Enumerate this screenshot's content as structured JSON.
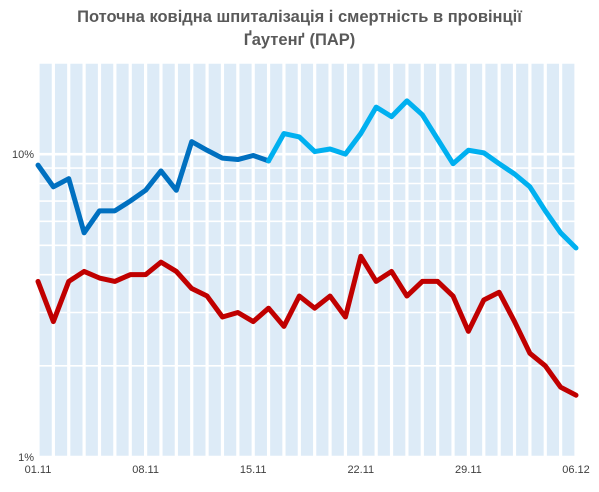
{
  "chart_data": {
    "type": "line",
    "title_lines": [
      "Поточна ковідна шпиталізація і смертність  в провінції",
      "Ґаутенґ (ПАР)"
    ],
    "xlabel": "",
    "ylabel": "",
    "y_scale": "log",
    "ylim": [
      1,
      20
    ],
    "y_ticks": [
      {
        "value": 1,
        "label": "1%"
      },
      {
        "value": 10,
        "label": "10%"
      }
    ],
    "x": [
      "01.11",
      "02.11",
      "03.11",
      "04.11",
      "05.11",
      "06.11",
      "07.11",
      "08.11",
      "09.11",
      "10.11",
      "11.11",
      "12.11",
      "13.11",
      "14.11",
      "15.11",
      "16.11",
      "17.11",
      "18.11",
      "19.11",
      "20.11",
      "21.11",
      "22.11",
      "23.11",
      "24.11",
      "25.11",
      "26.11",
      "27.11",
      "28.11",
      "29.11",
      "30.11",
      "01.12",
      "02.12",
      "03.12",
      "04.12",
      "05.12",
      "06.12"
    ],
    "x_tick_labels": [
      "01.11",
      "08.11",
      "15.11",
      "22.11",
      "29.11",
      "06.12"
    ],
    "grid": {
      "vertical": true,
      "horizontal": true
    },
    "background_color": "#ddebf7",
    "series": [
      {
        "values": [
          9.2,
          7.8,
          8.3,
          5.5,
          6.5,
          6.5,
          7.0,
          7.6,
          8.8,
          7.6,
          11.0,
          10.3,
          9.7,
          9.6,
          9.9,
          9.5,
          11.7,
          11.4,
          10.2,
          10.4,
          10.0,
          11.7,
          14.3,
          13.3,
          15.0,
          13.5,
          11.2,
          9.3,
          10.3,
          10.1,
          9.3,
          8.6,
          7.8,
          6.5,
          5.5,
          4.9
        ],
        "colors": [
          "#0070c0",
          "#00b0f0"
        ],
        "color_switch_index": 15
      },
      {
        "values": [
          3.8,
          2.8,
          3.8,
          4.1,
          3.9,
          3.8,
          4.0,
          4.0,
          4.4,
          4.1,
          3.6,
          3.4,
          2.9,
          3.0,
          2.8,
          3.1,
          2.7,
          3.4,
          3.1,
          3.4,
          2.9,
          4.6,
          3.8,
          4.1,
          3.4,
          3.8,
          3.8,
          3.4,
          2.6,
          3.3,
          3.5,
          2.8,
          2.2,
          2.0,
          1.7,
          1.6
        ],
        "colors": [
          "#c00000"
        ]
      }
    ]
  }
}
